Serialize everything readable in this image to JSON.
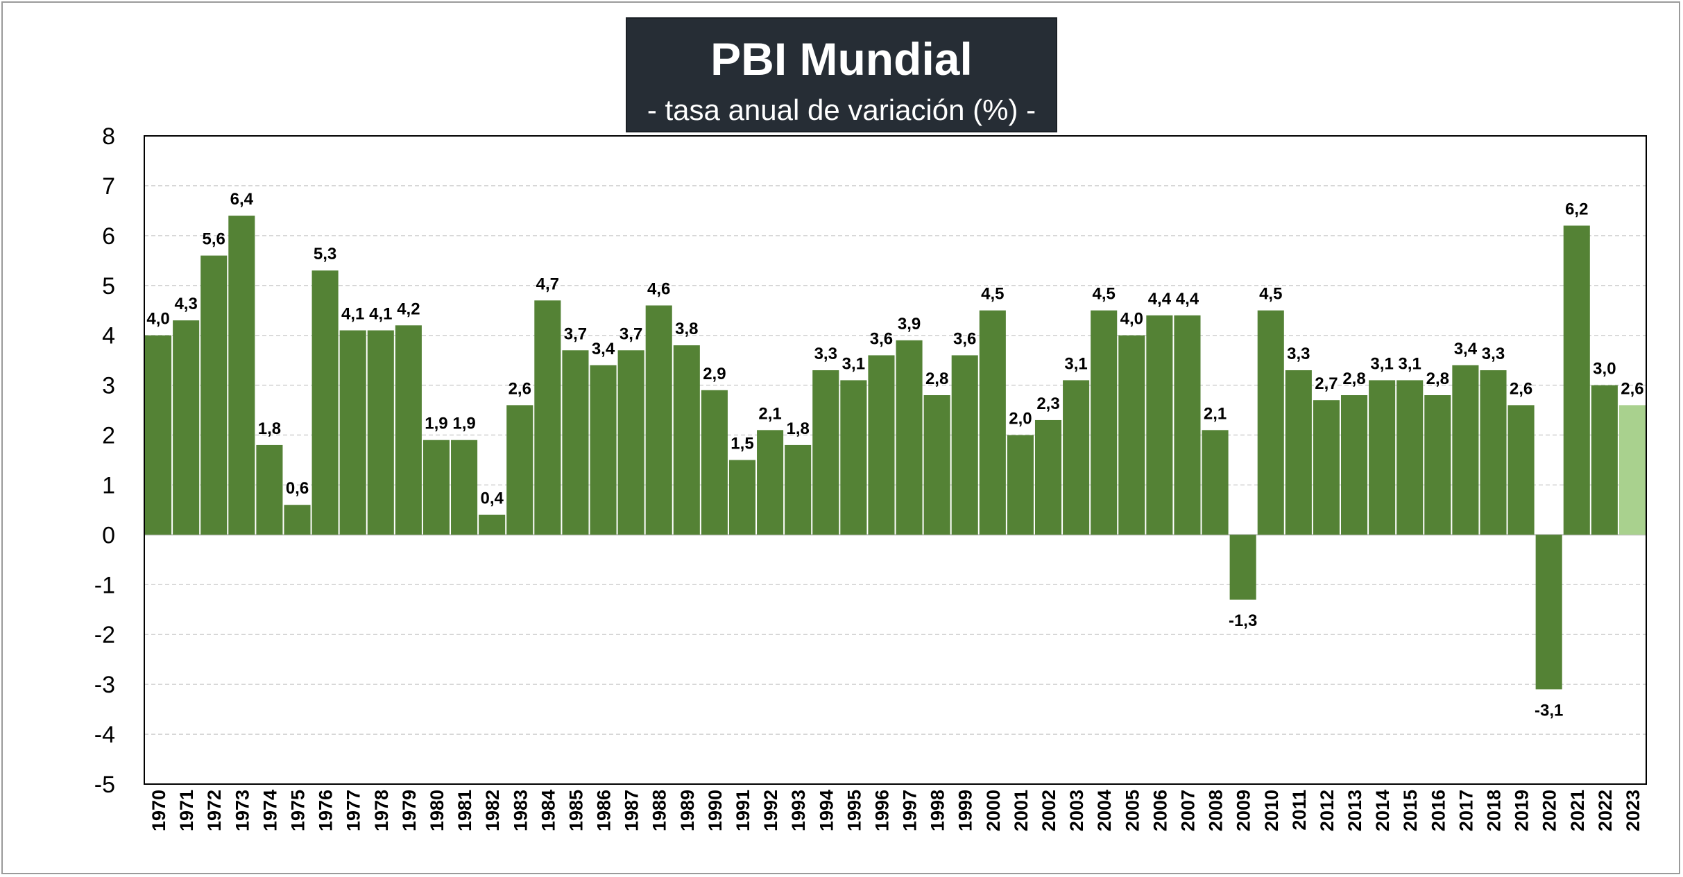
{
  "title": "PBI Mundial",
  "subtitle": "- tasa anual de variación (%) -",
  "colors": {
    "bar": "#548235",
    "bar_highlight": "#a9d18e",
    "title_bg": "#262d35",
    "grid": "#d0d0d0"
  },
  "chart_data": {
    "type": "bar",
    "title": "PBI Mundial",
    "subtitle": "- tasa anual de variación (%) -",
    "xlabel": "",
    "ylabel": "",
    "ylim": [
      -5,
      8
    ],
    "yticks": [
      "8",
      "7",
      "6",
      "5",
      "4",
      "3",
      "2",
      "1",
      "0",
      "-1",
      "-2",
      "-3",
      "-4",
      "-5"
    ],
    "grid": true,
    "categories": [
      "1970",
      "1971",
      "1972",
      "1973",
      "1974",
      "1975",
      "1976",
      "1977",
      "1978",
      "1979",
      "1980",
      "1981",
      "1982",
      "1983",
      "1984",
      "1985",
      "1986",
      "1987",
      "1988",
      "1989",
      "1990",
      "1991",
      "1992",
      "1993",
      "1994",
      "1995",
      "1996",
      "1997",
      "1998",
      "1999",
      "2000",
      "2001",
      "2002",
      "2003",
      "2004",
      "2005",
      "2006",
      "2007",
      "2008",
      "2009",
      "2010",
      "2011",
      "2012",
      "2013",
      "2014",
      "2015",
      "2016",
      "2017",
      "2018",
      "2019",
      "2020",
      "2021",
      "2022",
      "2023"
    ],
    "values": [
      4.0,
      4.3,
      5.6,
      6.4,
      1.8,
      0.6,
      5.3,
      4.1,
      4.1,
      4.2,
      1.9,
      1.9,
      0.4,
      2.6,
      4.7,
      3.7,
      3.4,
      3.7,
      4.6,
      3.8,
      2.9,
      1.5,
      2.1,
      1.8,
      3.3,
      3.1,
      3.6,
      3.9,
      2.8,
      3.6,
      4.5,
      2.0,
      2.3,
      3.1,
      4.5,
      4.0,
      4.4,
      4.4,
      2.1,
      -1.3,
      4.5,
      3.3,
      2.7,
      2.8,
      3.1,
      3.1,
      2.8,
      3.4,
      3.3,
      2.6,
      -3.1,
      6.2,
      3.0,
      2.6
    ],
    "labels": [
      "4,0",
      "4,3",
      "5,6",
      "6,4",
      "1,8",
      "0,6",
      "5,3",
      "4,1",
      "4,1",
      "4,2",
      "1,9",
      "1,9",
      "0,4",
      "2,6",
      "4,7",
      "3,7",
      "3,4",
      "3,7",
      "4,6",
      "3,8",
      "2,9",
      "1,5",
      "2,1",
      "1,8",
      "3,3",
      "3,1",
      "3,6",
      "3,9",
      "2,8",
      "3,6",
      "4,5",
      "2,0",
      "2,3",
      "3,1",
      "4,5",
      "4,0",
      "4,4",
      "4,4",
      "2,1",
      "-1,3",
      "4,5",
      "3,3",
      "2,7",
      "2,8",
      "3,1",
      "3,1",
      "2,8",
      "3,4",
      "3,3",
      "2,6",
      "-3,1",
      "6,2",
      "3,0",
      "2,6"
    ],
    "highlight_last": true
  }
}
